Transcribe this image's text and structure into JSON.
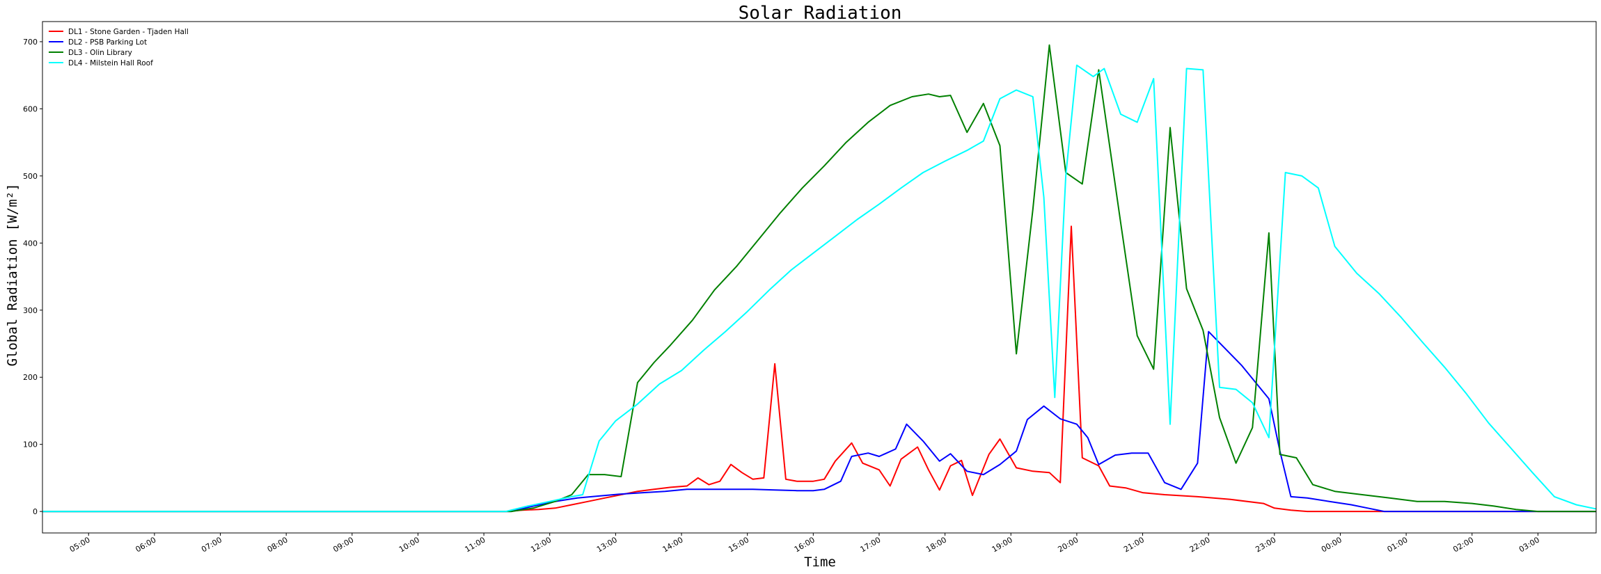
{
  "chart_data": {
    "type": "line",
    "title": "Solar Radiation",
    "xlabel": "Time",
    "ylabel": "Global Radiation [W/m²]",
    "xlim": [
      "04:18",
      "03:53"
    ],
    "ylim": [
      -32,
      730
    ],
    "yticks": [
      0,
      100,
      200,
      300,
      400,
      500,
      600,
      700
    ],
    "xticks": [
      "05:00",
      "06:00",
      "07:00",
      "08:00",
      "09:00",
      "10:00",
      "11:00",
      "12:00",
      "13:00",
      "14:00",
      "15:00",
      "16:00",
      "17:00",
      "18:00",
      "19:00",
      "20:00",
      "21:00",
      "22:00",
      "23:00",
      "00:00",
      "01:00",
      "02:00",
      "03:00"
    ],
    "grid": false,
    "legend_position": "top-left",
    "series": [
      {
        "name": "DL1 - Stone Garden - Tjaden Hall",
        "color": "#ff0000",
        "points": [
          [
            "04:18",
            0
          ],
          [
            "11:20",
            0
          ],
          [
            "11:35",
            2
          ],
          [
            "11:50",
            3
          ],
          [
            "12:05",
            5
          ],
          [
            "12:20",
            10
          ],
          [
            "12:35",
            15
          ],
          [
            "12:50",
            20
          ],
          [
            "13:05",
            25
          ],
          [
            "13:20",
            30
          ],
          [
            "13:35",
            33
          ],
          [
            "13:50",
            36
          ],
          [
            "14:05",
            38
          ],
          [
            "14:15",
            50
          ],
          [
            "14:25",
            40
          ],
          [
            "14:35",
            45
          ],
          [
            "14:45",
            70
          ],
          [
            "14:55",
            58
          ],
          [
            "15:05",
            48
          ],
          [
            "15:15",
            50
          ],
          [
            "15:25",
            220
          ],
          [
            "15:35",
            48
          ],
          [
            "15:45",
            45
          ],
          [
            "16:00",
            45
          ],
          [
            "16:10",
            48
          ],
          [
            "16:20",
            75
          ],
          [
            "16:35",
            102
          ],
          [
            "16:45",
            72
          ],
          [
            "17:00",
            62
          ],
          [
            "17:10",
            38
          ],
          [
            "17:20",
            78
          ],
          [
            "17:35",
            96
          ],
          [
            "17:45",
            62
          ],
          [
            "17:55",
            32
          ],
          [
            "18:05",
            68
          ],
          [
            "18:15",
            76
          ],
          [
            "18:25",
            24
          ],
          [
            "18:40",
            85
          ],
          [
            "18:50",
            108
          ],
          [
            "19:05",
            65
          ],
          [
            "19:20",
            60
          ],
          [
            "19:35",
            58
          ],
          [
            "19:45",
            43
          ],
          [
            "19:55",
            425
          ],
          [
            "20:05",
            80
          ],
          [
            "20:20",
            68
          ],
          [
            "20:30",
            38
          ],
          [
            "20:45",
            35
          ],
          [
            "21:00",
            28
          ],
          [
            "21:20",
            25
          ],
          [
            "21:50",
            22
          ],
          [
            "22:20",
            18
          ],
          [
            "22:50",
            12
          ],
          [
            "23:00",
            5
          ],
          [
            "23:15",
            2
          ],
          [
            "23:30",
            0
          ],
          [
            "03:53",
            0
          ]
        ]
      },
      {
        "name": "DL2 - PSB Parking Lot",
        "color": "#0000ff",
        "points": [
          [
            "04:18",
            0
          ],
          [
            "11:25",
            0
          ],
          [
            "11:45",
            8
          ],
          [
            "12:05",
            15
          ],
          [
            "12:25",
            20
          ],
          [
            "12:45",
            23
          ],
          [
            "13:05",
            26
          ],
          [
            "13:25",
            28
          ],
          [
            "13:45",
            30
          ],
          [
            "14:05",
            33
          ],
          [
            "14:25",
            33
          ],
          [
            "14:45",
            33
          ],
          [
            "15:05",
            33
          ],
          [
            "15:25",
            32
          ],
          [
            "15:45",
            31
          ],
          [
            "16:00",
            31
          ],
          [
            "16:10",
            33
          ],
          [
            "16:25",
            45
          ],
          [
            "16:35",
            82
          ],
          [
            "16:50",
            87
          ],
          [
            "17:00",
            82
          ],
          [
            "17:15",
            93
          ],
          [
            "17:25",
            130
          ],
          [
            "17:40",
            105
          ],
          [
            "17:55",
            75
          ],
          [
            "18:05",
            86
          ],
          [
            "18:20",
            60
          ],
          [
            "18:35",
            55
          ],
          [
            "18:50",
            70
          ],
          [
            "19:05",
            90
          ],
          [
            "19:15",
            137
          ],
          [
            "19:30",
            157
          ],
          [
            "19:45",
            138
          ],
          [
            "20:00",
            130
          ],
          [
            "20:10",
            110
          ],
          [
            "20:20",
            70
          ],
          [
            "20:35",
            84
          ],
          [
            "20:50",
            87
          ],
          [
            "21:05",
            87
          ],
          [
            "21:20",
            43
          ],
          [
            "21:35",
            33
          ],
          [
            "21:50",
            72
          ],
          [
            "22:00",
            268
          ],
          [
            "22:30",
            218
          ],
          [
            "22:55",
            168
          ],
          [
            "23:05",
            90
          ],
          [
            "23:15",
            22
          ],
          [
            "23:30",
            20
          ],
          [
            "23:50",
            15
          ],
          [
            "24:10",
            10
          ],
          [
            "24:25",
            5
          ],
          [
            "24:40",
            0
          ],
          [
            "27:53",
            0
          ]
        ]
      },
      {
        "name": "DL3 - Olin Library",
        "color": "#008000",
        "points": [
          [
            "04:18",
            0
          ],
          [
            "11:25",
            0
          ],
          [
            "11:45",
            5
          ],
          [
            "12:05",
            15
          ],
          [
            "12:20",
            25
          ],
          [
            "12:35",
            55
          ],
          [
            "12:50",
            55
          ],
          [
            "13:05",
            52
          ],
          [
            "13:20",
            192
          ],
          [
            "13:35",
            222
          ],
          [
            "13:50",
            248
          ],
          [
            "14:10",
            285
          ],
          [
            "14:30",
            330
          ],
          [
            "14:50",
            365
          ],
          [
            "15:10",
            405
          ],
          [
            "15:30",
            445
          ],
          [
            "15:50",
            482
          ],
          [
            "16:10",
            515
          ],
          [
            "16:30",
            550
          ],
          [
            "16:50",
            580
          ],
          [
            "17:10",
            605
          ],
          [
            "17:30",
            618
          ],
          [
            "17:45",
            622
          ],
          [
            "17:55",
            618
          ],
          [
            "18:05",
            620
          ],
          [
            "18:20",
            565
          ],
          [
            "18:35",
            608
          ],
          [
            "18:50",
            545
          ],
          [
            "19:05",
            235
          ],
          [
            "19:20",
            450
          ],
          [
            "19:35",
            695
          ],
          [
            "19:50",
            505
          ],
          [
            "20:05",
            488
          ],
          [
            "20:20",
            658
          ],
          [
            "20:40",
            430
          ],
          [
            "20:55",
            262
          ],
          [
            "21:10",
            212
          ],
          [
            "21:25",
            572
          ],
          [
            "21:40",
            332
          ],
          [
            "21:55",
            270
          ],
          [
            "22:10",
            140
          ],
          [
            "22:25",
            72
          ],
          [
            "22:40",
            125
          ],
          [
            "22:55",
            415
          ],
          [
            "23:05",
            85
          ],
          [
            "23:20",
            80
          ],
          [
            "23:35",
            40
          ],
          [
            "23:55",
            30
          ],
          [
            "24:20",
            25
          ],
          [
            "24:45",
            20
          ],
          [
            "25:10",
            15
          ],
          [
            "25:35",
            15
          ],
          [
            "26:00",
            12
          ],
          [
            "26:20",
            8
          ],
          [
            "26:40",
            3
          ],
          [
            "27:00",
            0
          ],
          [
            "27:53",
            0
          ]
        ]
      },
      {
        "name": "DL4 - Milstein Hall Roof",
        "color": "#00ffff",
        "points": [
          [
            "04:18",
            0
          ],
          [
            "11:20",
            0
          ],
          [
            "11:40",
            8
          ],
          [
            "12:00",
            15
          ],
          [
            "12:20",
            22
          ],
          [
            "12:30",
            25
          ],
          [
            "12:45",
            105
          ],
          [
            "13:00",
            135
          ],
          [
            "13:20",
            160
          ],
          [
            "13:40",
            190
          ],
          [
            "14:00",
            210
          ],
          [
            "14:20",
            240
          ],
          [
            "14:40",
            268
          ],
          [
            "15:00",
            298
          ],
          [
            "15:20",
            330
          ],
          [
            "15:40",
            360
          ],
          [
            "16:00",
            385
          ],
          [
            "16:20",
            410
          ],
          [
            "16:40",
            435
          ],
          [
            "17:00",
            458
          ],
          [
            "17:20",
            482
          ],
          [
            "17:40",
            505
          ],
          [
            "18:00",
            522
          ],
          [
            "18:20",
            538
          ],
          [
            "18:35",
            552
          ],
          [
            "18:50",
            615
          ],
          [
            "19:05",
            628
          ],
          [
            "19:20",
            618
          ],
          [
            "19:30",
            468
          ],
          [
            "19:40",
            170
          ],
          [
            "19:50",
            500
          ],
          [
            "20:00",
            665
          ],
          [
            "20:15",
            648
          ],
          [
            "20:25",
            660
          ],
          [
            "20:40",
            592
          ],
          [
            "20:55",
            580
          ],
          [
            "21:10",
            645
          ],
          [
            "21:25",
            130
          ],
          [
            "21:40",
            660
          ],
          [
            "21:55",
            658
          ],
          [
            "22:10",
            185
          ],
          [
            "22:25",
            182
          ],
          [
            "22:40",
            162
          ],
          [
            "22:55",
            110
          ],
          [
            "23:10",
            505
          ],
          [
            "23:25",
            500
          ],
          [
            "23:40",
            482
          ],
          [
            "23:55",
            395
          ],
          [
            "24:15",
            355
          ],
          [
            "24:35",
            325
          ],
          [
            "24:55",
            290
          ],
          [
            "25:15",
            252
          ],
          [
            "25:35",
            215
          ],
          [
            "25:55",
            175
          ],
          [
            "26:15",
            132
          ],
          [
            "26:35",
            95
          ],
          [
            "26:55",
            58
          ],
          [
            "27:15",
            22
          ],
          [
            "27:35",
            10
          ],
          [
            "27:55",
            3
          ],
          [
            "28:05",
            0
          ],
          [
            "27:53",
            0
          ]
        ]
      }
    ]
  }
}
